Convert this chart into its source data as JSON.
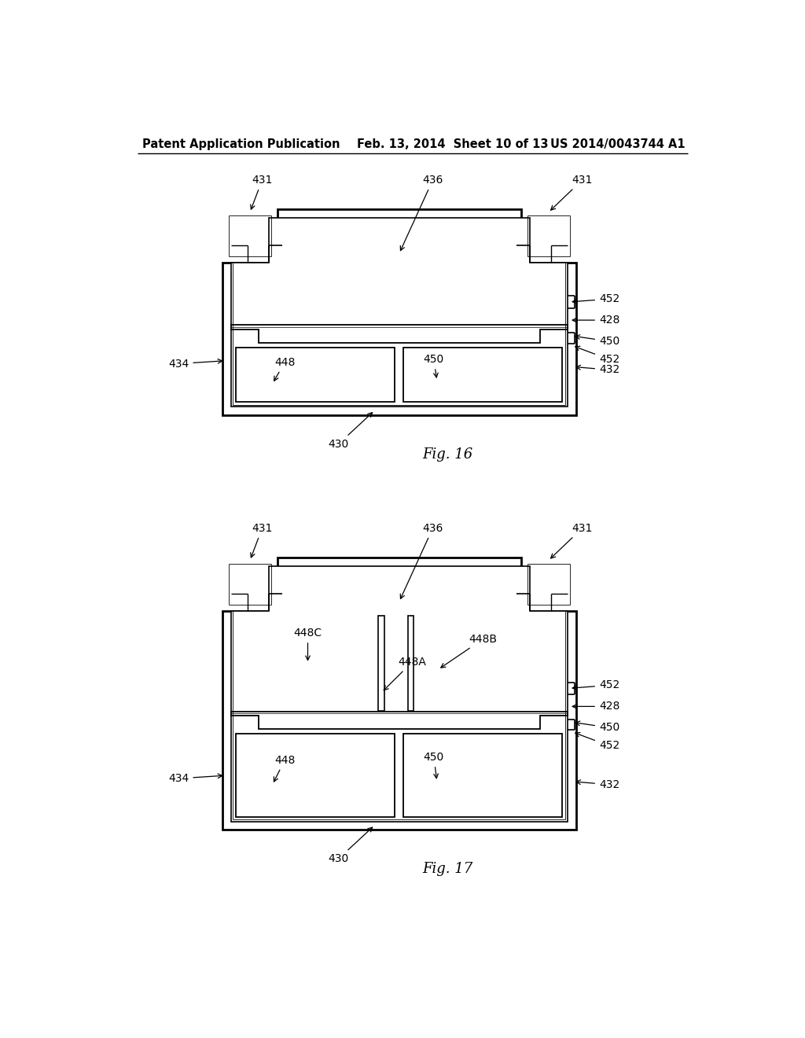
{
  "bg_color": "#ffffff",
  "header_left": "Patent Application Publication",
  "header_mid": "Feb. 13, 2014  Sheet 10 of 13",
  "header_right": "US 2014/0043744 A1",
  "fig16_label": "Fig. 16",
  "fig17_label": "Fig. 17",
  "line_color": "#000000",
  "label_fontsize": 10,
  "header_fontsize": 10.5
}
